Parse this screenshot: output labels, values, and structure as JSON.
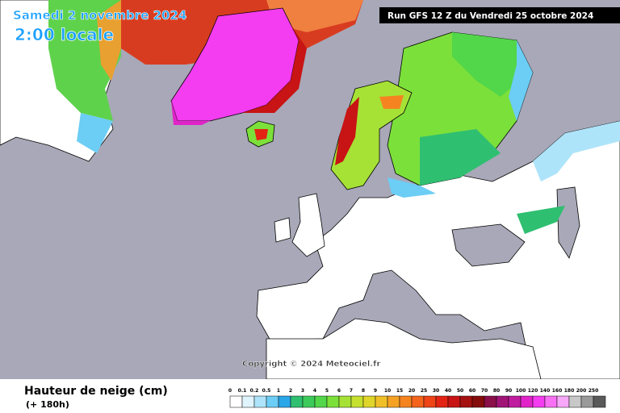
{
  "header": {
    "date": "Samedi 2 novembre 2024",
    "time": "2:00 locale",
    "run": "Run GFS 12 Z du Vendredi 25 octobre 2024"
  },
  "map": {
    "copyright": "Copyright © 2024 Meteociel.fr"
  },
  "footer": {
    "title": "Hauteur de neige (cm)",
    "lead": "(+ 180h)"
  },
  "legend": {
    "items": [
      {
        "label": 0,
        "color": "#ffffff"
      },
      {
        "label": 0.1,
        "color": "#dff4fc"
      },
      {
        "label": 0.2,
        "color": "#aee4fa"
      },
      {
        "label": 0.5,
        "color": "#6ccdf5"
      },
      {
        "label": 1,
        "color": "#2aa7e8"
      },
      {
        "label": 2,
        "color": "#2fbf71"
      },
      {
        "label": 3,
        "color": "#3ccb5a"
      },
      {
        "label": 4,
        "color": "#52d64a"
      },
      {
        "label": 5,
        "color": "#7ce03a"
      },
      {
        "label": 6,
        "color": "#a6e236"
      },
      {
        "label": 7,
        "color": "#c6e02f"
      },
      {
        "label": 8,
        "color": "#e0d52a"
      },
      {
        "label": 9,
        "color": "#f0c028"
      },
      {
        "label": 10,
        "color": "#f5a224"
      },
      {
        "label": 15,
        "color": "#f58420"
      },
      {
        "label": 20,
        "color": "#f4641c"
      },
      {
        "label": 25,
        "color": "#ee4418"
      },
      {
        "label": 30,
        "color": "#e32414"
      },
      {
        "label": 40,
        "color": "#c81414"
      },
      {
        "label": 50,
        "color": "#a51010"
      },
      {
        "label": 60,
        "color": "#850c0c"
      },
      {
        "label": 70,
        "color": "#8a0f4a"
      },
      {
        "label": 80,
        "color": "#a01478"
      },
      {
        "label": 90,
        "color": "#c01ca0"
      },
      {
        "label": 100,
        "color": "#e024c8"
      },
      {
        "label": 120,
        "color": "#f43cf0"
      },
      {
        "label": 140,
        "color": "#f870f4"
      },
      {
        "label": 160,
        "color": "#f8a8f8"
      },
      {
        "label": 180,
        "color": "#c8c8c8"
      },
      {
        "label": 200,
        "color": "#9a9a9a"
      },
      {
        "label": 250,
        "color": "#5a5a5a"
      }
    ]
  }
}
